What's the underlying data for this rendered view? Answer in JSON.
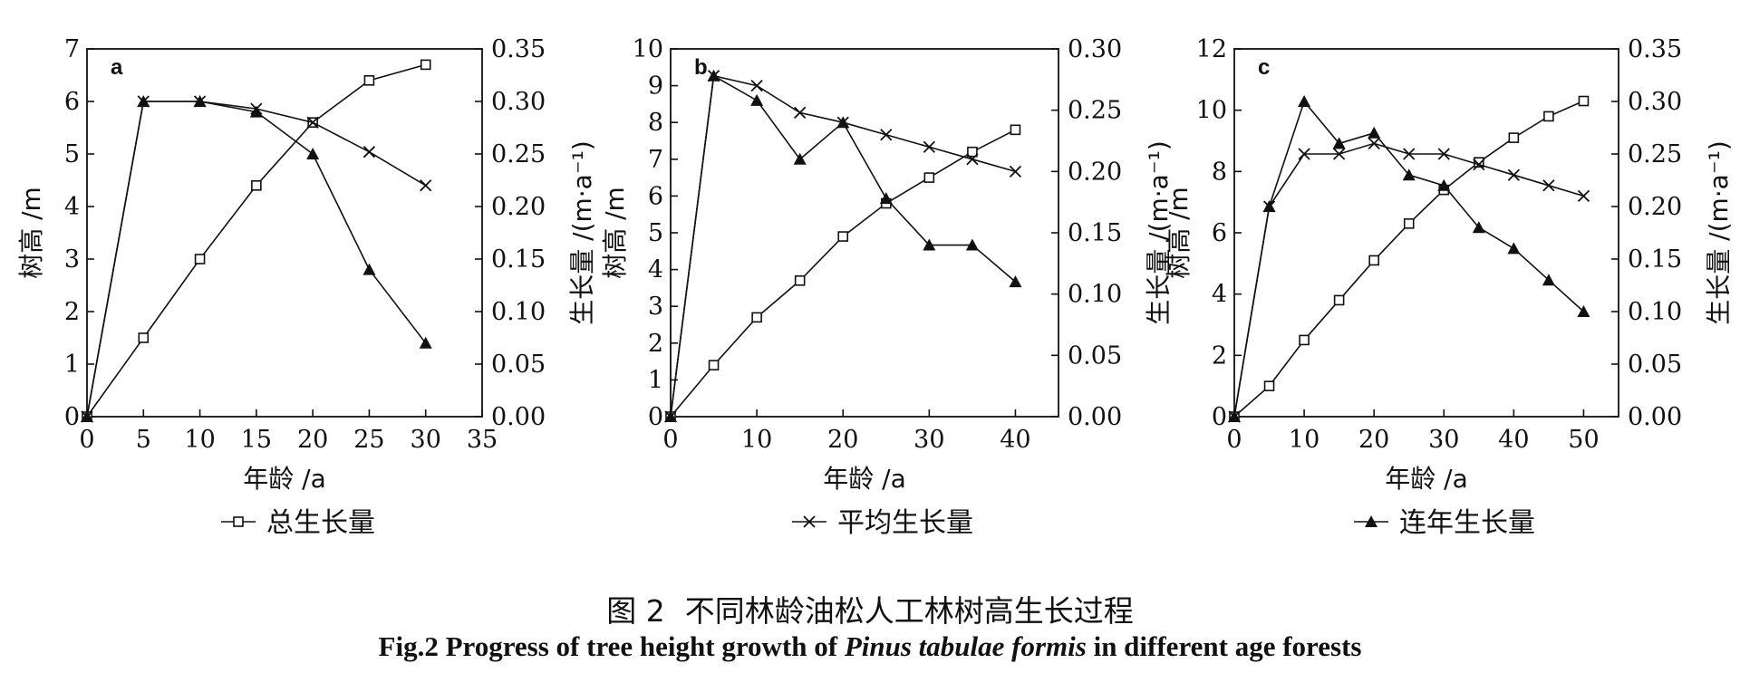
{
  "chart_data": [
    {
      "type": "line",
      "panel_label": "a",
      "xlabel": "年龄 /a",
      "ylabel_left": "树高 /m",
      "ylabel_right": "生长量 /(m·a⁻¹)",
      "x_ticks": [
        "0",
        "5",
        "10",
        "15",
        "20",
        "25",
        "30",
        "35"
      ],
      "y_left_ticks": [
        "0",
        "1",
        "2",
        "3",
        "4",
        "5",
        "6",
        "7"
      ],
      "y_right_ticks": [
        "0.00",
        "0.05",
        "0.10",
        "0.15",
        "0.20",
        "0.25",
        "0.30",
        "0.35"
      ],
      "xlim": [
        0,
        35
      ],
      "ylim_left": [
        0,
        7
      ],
      "ylim_right": [
        0,
        0.35
      ],
      "series": [
        {
          "name": "总生长量",
          "marker": "square",
          "axis": "left",
          "x": [
            0,
            5,
            10,
            15,
            20,
            25,
            30
          ],
          "values": [
            0,
            1.5,
            3.0,
            4.4,
            5.6,
            6.4,
            6.7
          ]
        },
        {
          "name": "平均生长量",
          "marker": "cross",
          "axis": "right",
          "x": [
            0,
            5,
            10,
            15,
            20,
            25,
            30
          ],
          "values": [
            0,
            0.3,
            0.3,
            0.293,
            0.28,
            0.252,
            0.22
          ]
        },
        {
          "name": "连年生长量",
          "marker": "triangle",
          "axis": "right",
          "x": [
            0,
            5,
            10,
            15,
            20,
            25,
            30
          ],
          "values": [
            0,
            0.3,
            0.3,
            0.29,
            0.25,
            0.14,
            0.07
          ]
        }
      ],
      "legend": "bottom"
    },
    {
      "type": "line",
      "panel_label": "b",
      "xlabel": "年龄 /a",
      "ylabel_left": "树高 /m",
      "ylabel_right": "生长量 /(m·a⁻¹)",
      "x_ticks": [
        "0",
        "10",
        "20",
        "30",
        "40"
      ],
      "y_left_ticks": [
        "0",
        "1",
        "2",
        "3",
        "4",
        "5",
        "6",
        "7",
        "8",
        "9",
        "10"
      ],
      "y_right_ticks": [
        "0.00",
        "0.05",
        "0.10",
        "0.15",
        "0.20",
        "0.25",
        "0.30"
      ],
      "xlim": [
        0,
        45
      ],
      "ylim_left": [
        0,
        10
      ],
      "ylim_right": [
        0,
        0.3
      ],
      "series": [
        {
          "name": "总生长量",
          "marker": "square",
          "axis": "left",
          "x": [
            0,
            5,
            10,
            15,
            20,
            25,
            30,
            35,
            40
          ],
          "values": [
            0,
            1.4,
            2.7,
            3.7,
            4.9,
            5.8,
            6.5,
            7.2,
            7.8
          ]
        },
        {
          "name": "平均生长量",
          "marker": "cross",
          "axis": "right",
          "x": [
            0,
            5,
            10,
            15,
            20,
            25,
            30,
            35,
            40
          ],
          "values": [
            0,
            0.278,
            0.27,
            0.248,
            0.24,
            0.23,
            0.22,
            0.21,
            0.2
          ]
        },
        {
          "name": "连年生长量",
          "marker": "triangle",
          "axis": "right",
          "x": [
            0,
            5,
            10,
            15,
            20,
            25,
            30,
            35,
            40
          ],
          "values": [
            0,
            0.278,
            0.258,
            0.21,
            0.24,
            0.178,
            0.14,
            0.14,
            0.11
          ]
        }
      ],
      "legend": "bottom"
    },
    {
      "type": "line",
      "panel_label": "c",
      "xlabel": "年龄 /a",
      "ylabel_left": "树高 /m",
      "ylabel_right": "生长量 /(m·a⁻¹)",
      "x_ticks": [
        "0",
        "10",
        "20",
        "30",
        "40",
        "50"
      ],
      "y_left_ticks": [
        "0",
        "2",
        "4",
        "6",
        "8",
        "10",
        "12"
      ],
      "y_right_ticks": [
        "0.00",
        "0.05",
        "0.10",
        "0.15",
        "0.20",
        "0.25",
        "0.30",
        "0.35"
      ],
      "xlim": [
        0,
        55
      ],
      "ylim_left": [
        0,
        12
      ],
      "ylim_right": [
        0,
        0.35
      ],
      "series": [
        {
          "name": "总生长量",
          "marker": "square",
          "axis": "left",
          "x": [
            0,
            5,
            10,
            15,
            20,
            25,
            30,
            35,
            40,
            45,
            50
          ],
          "values": [
            0,
            1.0,
            2.5,
            3.8,
            5.1,
            6.3,
            7.4,
            8.3,
            9.1,
            9.8,
            10.3
          ]
        },
        {
          "name": "平均生长量",
          "marker": "cross",
          "axis": "right",
          "x": [
            0,
            5,
            10,
            15,
            20,
            25,
            30,
            35,
            40,
            45,
            50
          ],
          "values": [
            0,
            0.2,
            0.25,
            0.25,
            0.26,
            0.25,
            0.25,
            0.24,
            0.23,
            0.22,
            0.21
          ]
        },
        {
          "name": "连年生长量",
          "marker": "triangle",
          "axis": "right",
          "x": [
            0,
            5,
            10,
            15,
            20,
            25,
            30,
            35,
            40,
            45,
            50
          ],
          "values": [
            0,
            0.2,
            0.3,
            0.26,
            0.27,
            0.23,
            0.22,
            0.18,
            0.16,
            0.13,
            0.1
          ]
        }
      ],
      "legend": "bottom"
    }
  ],
  "caption": {
    "cn_figno": "图 2",
    "cn_title": "不同林龄油松人工林树高生长过程",
    "en_prefix": "Fig.2   Progress of tree height growth of",
    "en_species": "Pinus tabulae formis",
    "en_suffix": "in different age forests"
  },
  "colors": {
    "ink": "#111111",
    "background": "#ffffff"
  }
}
